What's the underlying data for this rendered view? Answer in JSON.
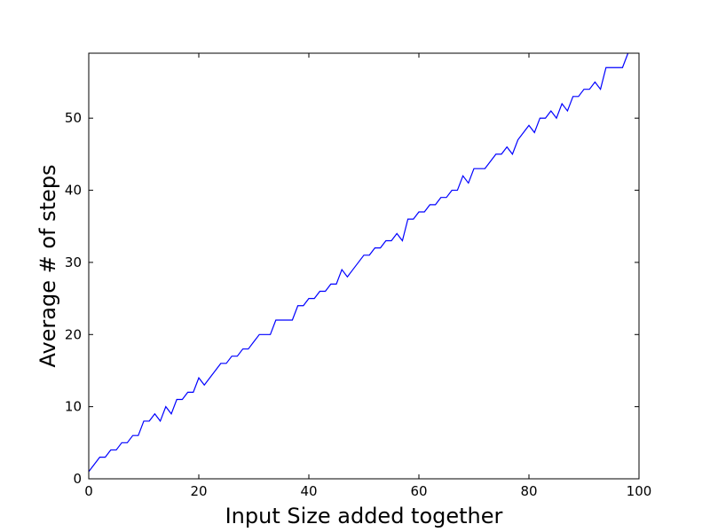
{
  "chart_data": {
    "type": "line",
    "title": "",
    "xlabel": "Input Size added together",
    "ylabel": "Average # of steps",
    "xlim": [
      0,
      100
    ],
    "ylim": [
      0,
      59
    ],
    "grid": false,
    "colors": {
      "line": "#0000ff",
      "axes": "#000000",
      "background": "#ffffff"
    },
    "x_ticks": [
      0,
      20,
      40,
      60,
      80,
      100
    ],
    "x_tick_labels": [
      "0",
      "20",
      "40",
      "60",
      "80",
      "100"
    ],
    "y_ticks": [
      0,
      10,
      20,
      30,
      40,
      50
    ],
    "y_tick_labels": [
      "0",
      "10",
      "20",
      "30",
      "40",
      "50"
    ],
    "series": [
      {
        "x": [
          0,
          1,
          2,
          3,
          4,
          5,
          6,
          7,
          8,
          9,
          10,
          11,
          12,
          13,
          14,
          15,
          16,
          17,
          18,
          19,
          20,
          21,
          22,
          23,
          24,
          25,
          26,
          27,
          28,
          29,
          30,
          31,
          32,
          33,
          34,
          35,
          36,
          37,
          38,
          39,
          40,
          41,
          42,
          43,
          44,
          45,
          46,
          47,
          48,
          49,
          50,
          51,
          52,
          53,
          54,
          55,
          56,
          57,
          58,
          59,
          60,
          61,
          62,
          63,
          64,
          65,
          66,
          67,
          68,
          69,
          70,
          71,
          72,
          73,
          74,
          75,
          76,
          77,
          78,
          79,
          80,
          81,
          82,
          83,
          84,
          85,
          86,
          87,
          88,
          89,
          90,
          91,
          92,
          93,
          94,
          95,
          96,
          97,
          98
        ],
        "y": [
          1,
          2,
          3,
          3,
          4,
          4,
          5,
          5,
          6,
          6,
          8,
          8,
          9,
          8,
          10,
          9,
          11,
          11,
          12,
          12,
          14,
          13,
          14,
          15,
          16,
          16,
          17,
          17,
          18,
          18,
          19,
          20,
          20,
          20,
          22,
          22,
          22,
          22,
          24,
          24,
          25,
          25,
          26,
          26,
          27,
          27,
          29,
          28,
          29,
          30,
          31,
          31,
          32,
          32,
          33,
          33,
          34,
          33,
          36,
          36,
          37,
          37,
          38,
          38,
          39,
          39,
          40,
          40,
          42,
          41,
          43,
          43,
          43,
          44,
          45,
          45,
          46,
          45,
          47,
          48,
          49,
          48,
          50,
          50,
          51,
          50,
          52,
          51,
          53,
          53,
          54,
          54,
          55,
          54,
          57,
          57,
          57,
          57,
          59
        ]
      }
    ]
  }
}
